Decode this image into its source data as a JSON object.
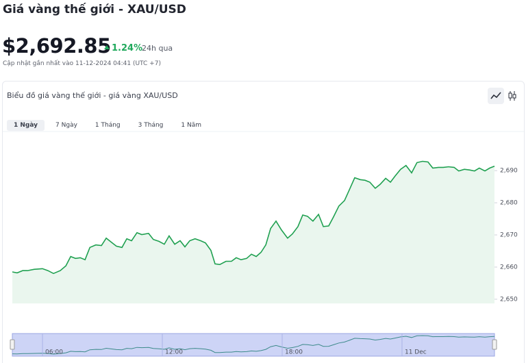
{
  "header": {
    "title": "Giá vàng thế giới - XAU/USD",
    "price": "$2,692.85",
    "change": "1.24%",
    "period": "24h qua",
    "updated": "Cập nhật gần nhất vào 11-12-2024 04:41 (UTC +7)"
  },
  "card": {
    "title": "Biểu đồ giá vàng thế giới - giá vàng XAU/USD",
    "tabs": [
      "1 Ngày",
      "7 Ngày",
      "1 Tháng",
      "3 Tháng",
      "1 Năm"
    ]
  },
  "chart_data": {
    "type": "line",
    "color": "#1fa050",
    "fill": "#eaf6ee",
    "x": [
      4.49,
      4.73,
      5.01,
      5.25,
      5.59,
      6.0,
      6.27,
      6.55,
      6.89,
      7.17,
      7.41,
      7.65,
      7.89,
      8.13,
      8.37,
      8.67,
      8.95,
      9.19,
      9.43,
      9.7,
      9.98,
      10.22,
      10.46,
      10.73,
      10.97,
      11.31,
      11.55,
      11.83,
      12.1,
      12.34,
      12.62,
      12.89,
      13.13,
      13.37,
      13.64,
      13.92,
      14.16,
      14.43,
      14.64,
      14.88,
      15.19,
      15.46,
      15.7,
      15.94,
      16.22,
      16.46,
      16.7,
      16.94,
      17.18,
      17.42,
      17.69,
      17.96,
      18.27,
      18.51,
      18.79,
      19.03,
      19.27,
      19.54,
      19.82,
      20.06,
      20.33,
      20.57,
      20.84,
      21.12,
      21.36,
      21.63,
      21.91,
      22.15,
      22.39,
      22.66,
      22.9,
      23.18,
      23.42,
      23.65,
      23.93,
      24.2,
      24.48,
      24.75,
      25.03,
      25.3,
      25.54,
      25.82,
      26.06,
      26.33,
      26.61,
      26.84,
      27.12,
      27.39,
      27.63,
      27.87,
      28.15,
      28.39,
      28.63
    ],
    "values": [
      2658.5,
      2658.2,
      2658.9,
      2658.9,
      2659.3,
      2659.5,
      2658.9,
      2658.0,
      2658.9,
      2660.4,
      2663.3,
      2662.7,
      2662.9,
      2662.3,
      2666.1,
      2666.9,
      2666.7,
      2669.0,
      2667.8,
      2666.5,
      2666.1,
      2668.8,
      2668.2,
      2670.7,
      2670.1,
      2670.5,
      2668.6,
      2668.0,
      2667.1,
      2669.7,
      2667.1,
      2668.2,
      2666.3,
      2668.2,
      2668.8,
      2668.2,
      2667.5,
      2665.2,
      2661.0,
      2660.8,
      2661.8,
      2661.8,
      2662.9,
      2662.3,
      2662.7,
      2664.0,
      2663.3,
      2664.6,
      2666.9,
      2672.0,
      2674.3,
      2671.6,
      2669.0,
      2670.3,
      2672.6,
      2676.2,
      2675.8,
      2674.3,
      2676.4,
      2672.6,
      2672.8,
      2675.6,
      2679.0,
      2680.7,
      2684.0,
      2687.8,
      2687.2,
      2687.0,
      2686.4,
      2684.5,
      2685.7,
      2687.6,
      2686.4,
      2688.3,
      2690.4,
      2691.6,
      2689.3,
      2692.5,
      2692.9,
      2692.7,
      2690.8,
      2691.0,
      2691.0,
      2691.2,
      2691.0,
      2689.9,
      2690.4,
      2690.2,
      2689.9,
      2690.8,
      2689.9,
      2690.8,
      2691.4
    ],
    "xlim": [
      4.49,
      28.63
    ],
    "ylim": [
      2648.7,
      2699.4
    ],
    "yticks": [
      {
        "value": 2650,
        "label": "2,650"
      },
      {
        "value": 2660,
        "label": "2,660"
      },
      {
        "value": 2670,
        "label": "2,670"
      },
      {
        "value": 2680,
        "label": "2,680"
      },
      {
        "value": 2690,
        "label": "2,690"
      }
    ],
    "xticks": [
      {
        "value": 6,
        "label": "06:00"
      },
      {
        "value": 12,
        "label": "12:00"
      },
      {
        "value": 18,
        "label": "18:00"
      },
      {
        "value": 24,
        "label": "11 Dec"
      }
    ]
  }
}
